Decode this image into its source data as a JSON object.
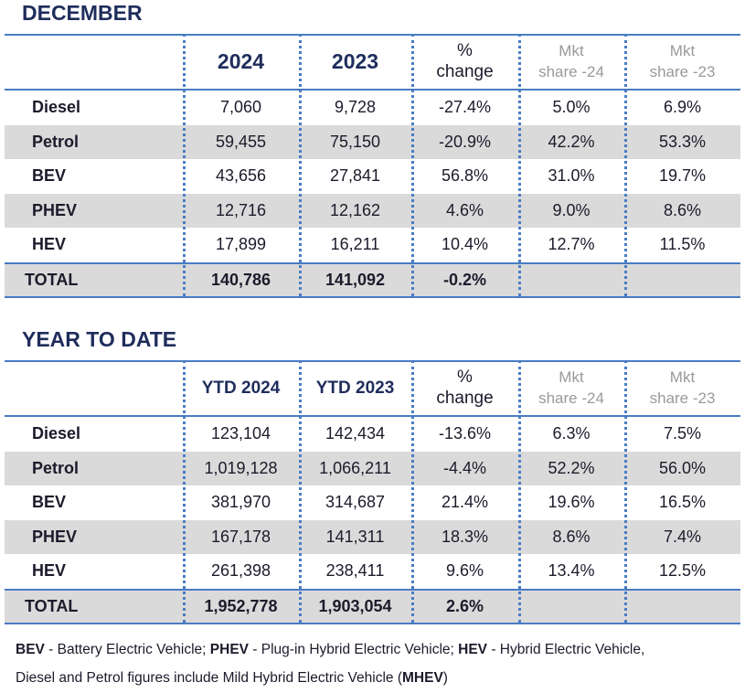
{
  "sections": [
    {
      "title": "DECEMBER",
      "header": [
        [
          "2024"
        ],
        [
          "2023"
        ],
        [
          "%",
          "change"
        ],
        [
          "Mkt",
          "share -24"
        ],
        [
          "Mkt",
          "share -23"
        ]
      ],
      "rows": [
        [
          "Diesel",
          "7,060",
          "9,728",
          "-27.4%",
          "5.0%",
          "6.9%"
        ],
        [
          "Petrol",
          "59,455",
          "75,150",
          "-20.9%",
          "42.2%",
          "53.3%"
        ],
        [
          "BEV",
          "43,656",
          "27,841",
          "56.8%",
          "31.0%",
          "19.7%"
        ],
        [
          "PHEV",
          "12,716",
          "12,162",
          "4.6%",
          "9.0%",
          "8.6%"
        ],
        [
          "HEV",
          "17,899",
          "16,211",
          "10.4%",
          "12.7%",
          "11.5%"
        ]
      ],
      "total": [
        "TOTAL",
        "140,786",
        "141,092",
        "-0.2%"
      ]
    },
    {
      "title": "YEAR TO DATE",
      "header": [
        [
          "YTD 2024"
        ],
        [
          "YTD 2023"
        ],
        [
          "%",
          "change"
        ],
        [
          "Mkt",
          "share -24"
        ],
        [
          "Mkt",
          "share -23"
        ]
      ],
      "rows": [
        [
          "Diesel",
          "123,104",
          "142,434",
          "-13.6%",
          "6.3%",
          "7.5%"
        ],
        [
          "Petrol",
          "1,019,128",
          "1,066,211",
          "-4.4%",
          "52.2%",
          "56.0%"
        ],
        [
          "BEV",
          "381,970",
          "314,687",
          "21.4%",
          "19.6%",
          "16.5%"
        ],
        [
          "PHEV",
          "167,178",
          "141,311",
          "18.3%",
          "8.6%",
          "7.4%"
        ],
        [
          "HEV",
          "261,398",
          "238,411",
          "9.6%",
          "13.4%",
          "12.5%"
        ]
      ],
      "total": [
        "TOTAL",
        "1,952,778",
        "1,903,054",
        "2.6%"
      ]
    }
  ],
  "footnote": [
    [
      {
        "text": "BEV",
        "bold": true
      },
      {
        "text": " - Battery Electric Vehicle; "
      },
      {
        "text": "PHEV",
        "bold": true
      },
      {
        "text": " - Plug-in Hybrid Electric Vehicle; "
      },
      {
        "text": "HEV",
        "bold": true
      },
      {
        "text": " - Hybrid Electric Vehicle,"
      }
    ],
    [
      {
        "text": "Diesel and Petrol figures include Mild Hybrid Electric Vehicle ("
      },
      {
        "text": "MHEV",
        "bold": true
      },
      {
        "text": ")"
      }
    ]
  ]
}
